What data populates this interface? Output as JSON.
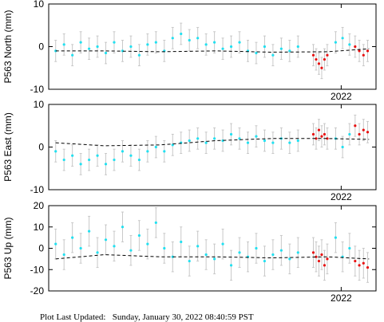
{
  "chart_data": [
    {
      "type": "scatter",
      "ylabel": "P563 North (mm)",
      "xlim": [
        2019.9,
        2022.25
      ],
      "xticks": [
        2022
      ],
      "ylim": [
        -10,
        10
      ],
      "yticks": [
        -10,
        0,
        10
      ],
      "series": [
        {
          "color": "#22e0f0",
          "error": 2.5,
          "x": [
            2019.95,
            2020.01,
            2020.07,
            2020.13,
            2020.19,
            2020.25,
            2020.31,
            2020.37,
            2020.43,
            2020.49,
            2020.55,
            2020.61,
            2020.67,
            2020.73,
            2020.79,
            2020.85,
            2020.91,
            2020.97,
            2021.03,
            2021.09,
            2021.15,
            2021.21,
            2021.27,
            2021.33,
            2021.39,
            2021.45,
            2021.51,
            2021.57,
            2021.63,
            2021.69,
            2021.96,
            2022.01,
            2022.06
          ],
          "values": [
            -1,
            0.5,
            -2,
            1,
            -0.5,
            0,
            -1.5,
            1,
            -1,
            0,
            -2,
            0.5,
            1,
            -1,
            2,
            3,
            1.5,
            2,
            0.5,
            1,
            -0.5,
            0,
            1,
            -1,
            -1.5,
            0,
            -2,
            -0.5,
            -1,
            0,
            1,
            2,
            0.5
          ]
        },
        {
          "color": "#e81010",
          "error": 2.5,
          "x": [
            2021.8,
            2021.82,
            2021.84,
            2021.86,
            2021.88,
            2021.9,
            2022.1,
            2022.13,
            2022.16,
            2022.19
          ],
          "values": [
            -2,
            -3,
            -4,
            -5,
            -3,
            -2,
            0,
            -1,
            -2,
            -1
          ]
        },
        {
          "color": "#000000",
          "dash": true,
          "x": [
            2019.95,
            2020.3,
            2020.7,
            2021.1,
            2021.5,
            2021.9,
            2022.2
          ],
          "values": [
            -1,
            -1,
            -1.2,
            -1,
            -1.3,
            -1.2,
            -0.5
          ]
        }
      ]
    },
    {
      "type": "scatter",
      "ylabel": "P563 East (mm)",
      "xlim": [
        2019.9,
        2022.25
      ],
      "xticks": [
        2022
      ],
      "ylim": [
        -10,
        10
      ],
      "yticks": [
        -10,
        0,
        10
      ],
      "series": [
        {
          "color": "#22e0f0",
          "error": 2.5,
          "x": [
            2019.95,
            2020.01,
            2020.07,
            2020.13,
            2020.19,
            2020.25,
            2020.31,
            2020.37,
            2020.43,
            2020.49,
            2020.55,
            2020.61,
            2020.67,
            2020.73,
            2020.79,
            2020.85,
            2020.91,
            2020.97,
            2021.03,
            2021.09,
            2021.15,
            2021.21,
            2021.27,
            2021.33,
            2021.39,
            2021.45,
            2021.51,
            2021.57,
            2021.63,
            2021.69,
            2021.96,
            2022.01,
            2022.06
          ],
          "values": [
            -1,
            -3,
            -2,
            -4,
            -3,
            -2,
            -4,
            -3,
            -1,
            -2,
            -3,
            -1,
            0,
            -1,
            0.5,
            1,
            1.5,
            2,
            1,
            2,
            1.5,
            3,
            2,
            1,
            2.5,
            1.5,
            1,
            2,
            1,
            1.5,
            2,
            0,
            3
          ]
        },
        {
          "color": "#e81010",
          "error": 2.5,
          "x": [
            2021.8,
            2021.82,
            2021.84,
            2021.86,
            2021.88,
            2021.9,
            2022.1,
            2022.13,
            2022.16,
            2022.19
          ],
          "values": [
            3,
            2,
            4,
            2.5,
            3,
            2,
            5,
            3,
            4,
            3.5
          ]
        },
        {
          "color": "#000000",
          "dash": true,
          "x": [
            2019.95,
            2020.3,
            2020.7,
            2021.1,
            2021.5,
            2021.9,
            2022.2
          ],
          "values": [
            1,
            0.3,
            0.5,
            1.5,
            2,
            2,
            1.8
          ]
        }
      ]
    },
    {
      "type": "scatter",
      "ylabel": "P563 Up (mm)",
      "xlim": [
        2019.9,
        2022.25
      ],
      "xticks": [
        2022
      ],
      "ylim": [
        -20,
        20
      ],
      "yticks": [
        -20,
        -10,
        0,
        10,
        20
      ],
      "series": [
        {
          "color": "#22e0f0",
          "error": 7,
          "x": [
            2019.95,
            2020.01,
            2020.07,
            2020.13,
            2020.19,
            2020.25,
            2020.31,
            2020.37,
            2020.43,
            2020.49,
            2020.55,
            2020.61,
            2020.67,
            2020.73,
            2020.79,
            2020.85,
            2020.91,
            2020.97,
            2021.03,
            2021.09,
            2021.15,
            2021.21,
            2021.27,
            2021.33,
            2021.39,
            2021.45,
            2021.51,
            2021.57,
            2021.63,
            2021.69,
            2021.96,
            2022.01,
            2022.06
          ],
          "values": [
            2,
            -3,
            5,
            0,
            8,
            -2,
            4,
            1,
            10,
            -1,
            6,
            2,
            12,
            0,
            -4,
            3,
            -6,
            1,
            -3,
            -5,
            2,
            -8,
            -2,
            -4,
            0,
            -6,
            -3,
            -1,
            -5,
            -2,
            5,
            -4,
            0
          ]
        },
        {
          "color": "#e81010",
          "error": 7,
          "x": [
            2021.8,
            2021.82,
            2021.84,
            2021.86,
            2021.88,
            2021.9,
            2022.1,
            2022.13,
            2022.16,
            2022.19
          ],
          "values": [
            -2,
            -4,
            -6,
            -3,
            -8,
            -5,
            -6,
            -8,
            -7,
            -9
          ]
        },
        {
          "color": "#000000",
          "dash": true,
          "x": [
            2019.95,
            2020.3,
            2020.7,
            2021.1,
            2021.5,
            2021.9,
            2022.2
          ],
          "values": [
            -5,
            -3,
            -4,
            -4,
            -4.5,
            -4,
            -5
          ]
        }
      ]
    }
  ],
  "footer": "Plot Last Updated:   Sunday, January 30, 2022 08:40:59 PST"
}
